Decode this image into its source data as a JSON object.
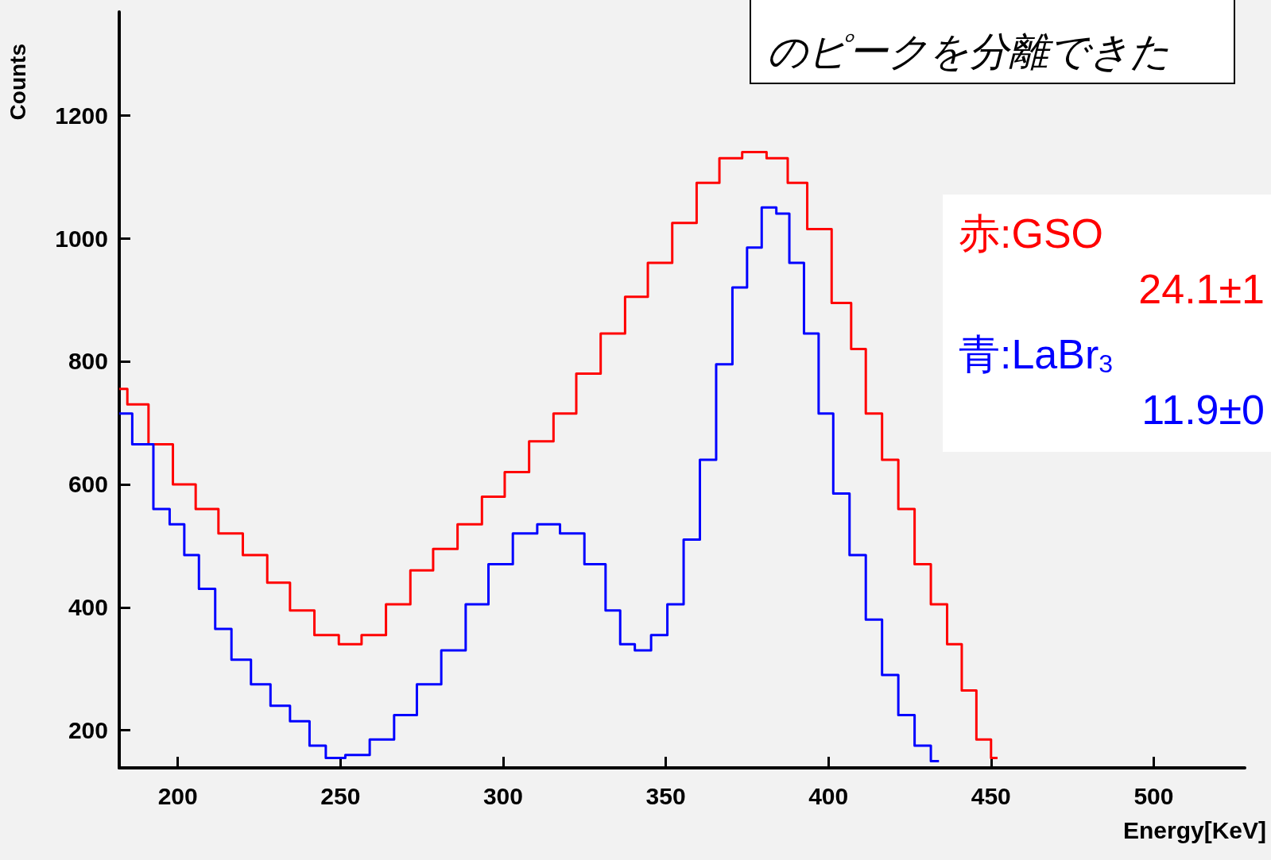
{
  "chart_data": {
    "type": "step",
    "xlabel": "Energy[KeV]",
    "ylabel": "Counts",
    "annotations": [
      "のピークを分離できた",
      "24.1±1",
      "11.9±0"
    ],
    "xlim": [
      182,
      528
    ],
    "xticks": [
      200,
      250,
      300,
      350,
      400,
      450,
      500
    ],
    "ylim": [
      139,
      1368
    ],
    "yticks": [
      200,
      400,
      600,
      800,
      1000,
      1200
    ],
    "series": [
      {
        "name": "赤:GSO",
        "color": "#ff0000",
        "x": [
          182,
          187,
          195,
          202,
          209,
          216,
          224,
          231,
          238,
          246,
          253,
          260,
          268,
          275,
          282,
          290,
          297,
          304,
          312,
          319,
          326,
          334,
          341,
          348,
          356,
          363,
          370,
          377,
          385,
          390,
          397,
          405,
          409,
          414,
          419,
          424,
          429,
          434,
          439,
          443,
          448,
          452
        ],
        "values": [
          755,
          730,
          665,
          600,
          560,
          520,
          485,
          440,
          395,
          355,
          340,
          355,
          405,
          460,
          495,
          535,
          580,
          620,
          670,
          715,
          780,
          845,
          905,
          960,
          1025,
          1090,
          1130,
          1140,
          1130,
          1090,
          1015,
          895,
          820,
          715,
          640,
          560,
          470,
          405,
          340,
          265,
          185,
          155
        ]
      },
      {
        "name": "青:LaBr$_{3}$",
        "color": "#0000ff",
        "x": [
          182,
          190,
          195,
          200,
          204,
          209,
          214,
          219,
          226,
          231,
          238,
          243,
          248,
          255,
          263,
          270,
          277,
          285,
          292,
          299,
          307,
          314,
          321,
          329,
          334,
          338,
          343,
          348,
          353,
          358,
          363,
          368,
          373,
          377,
          382,
          386,
          390,
          395,
          399,
          404,
          409,
          414,
          419,
          424,
          429,
          434
        ],
        "values": [
          715,
          665,
          560,
          535,
          485,
          430,
          365,
          315,
          275,
          240,
          215,
          175,
          155,
          160,
          185,
          225,
          275,
          330,
          405,
          470,
          520,
          535,
          520,
          470,
          395,
          340,
          330,
          355,
          405,
          510,
          640,
          795,
          920,
          985,
          1050,
          1040,
          960,
          845,
          715,
          585,
          485,
          380,
          290,
          225,
          175,
          150
        ]
      }
    ]
  }
}
